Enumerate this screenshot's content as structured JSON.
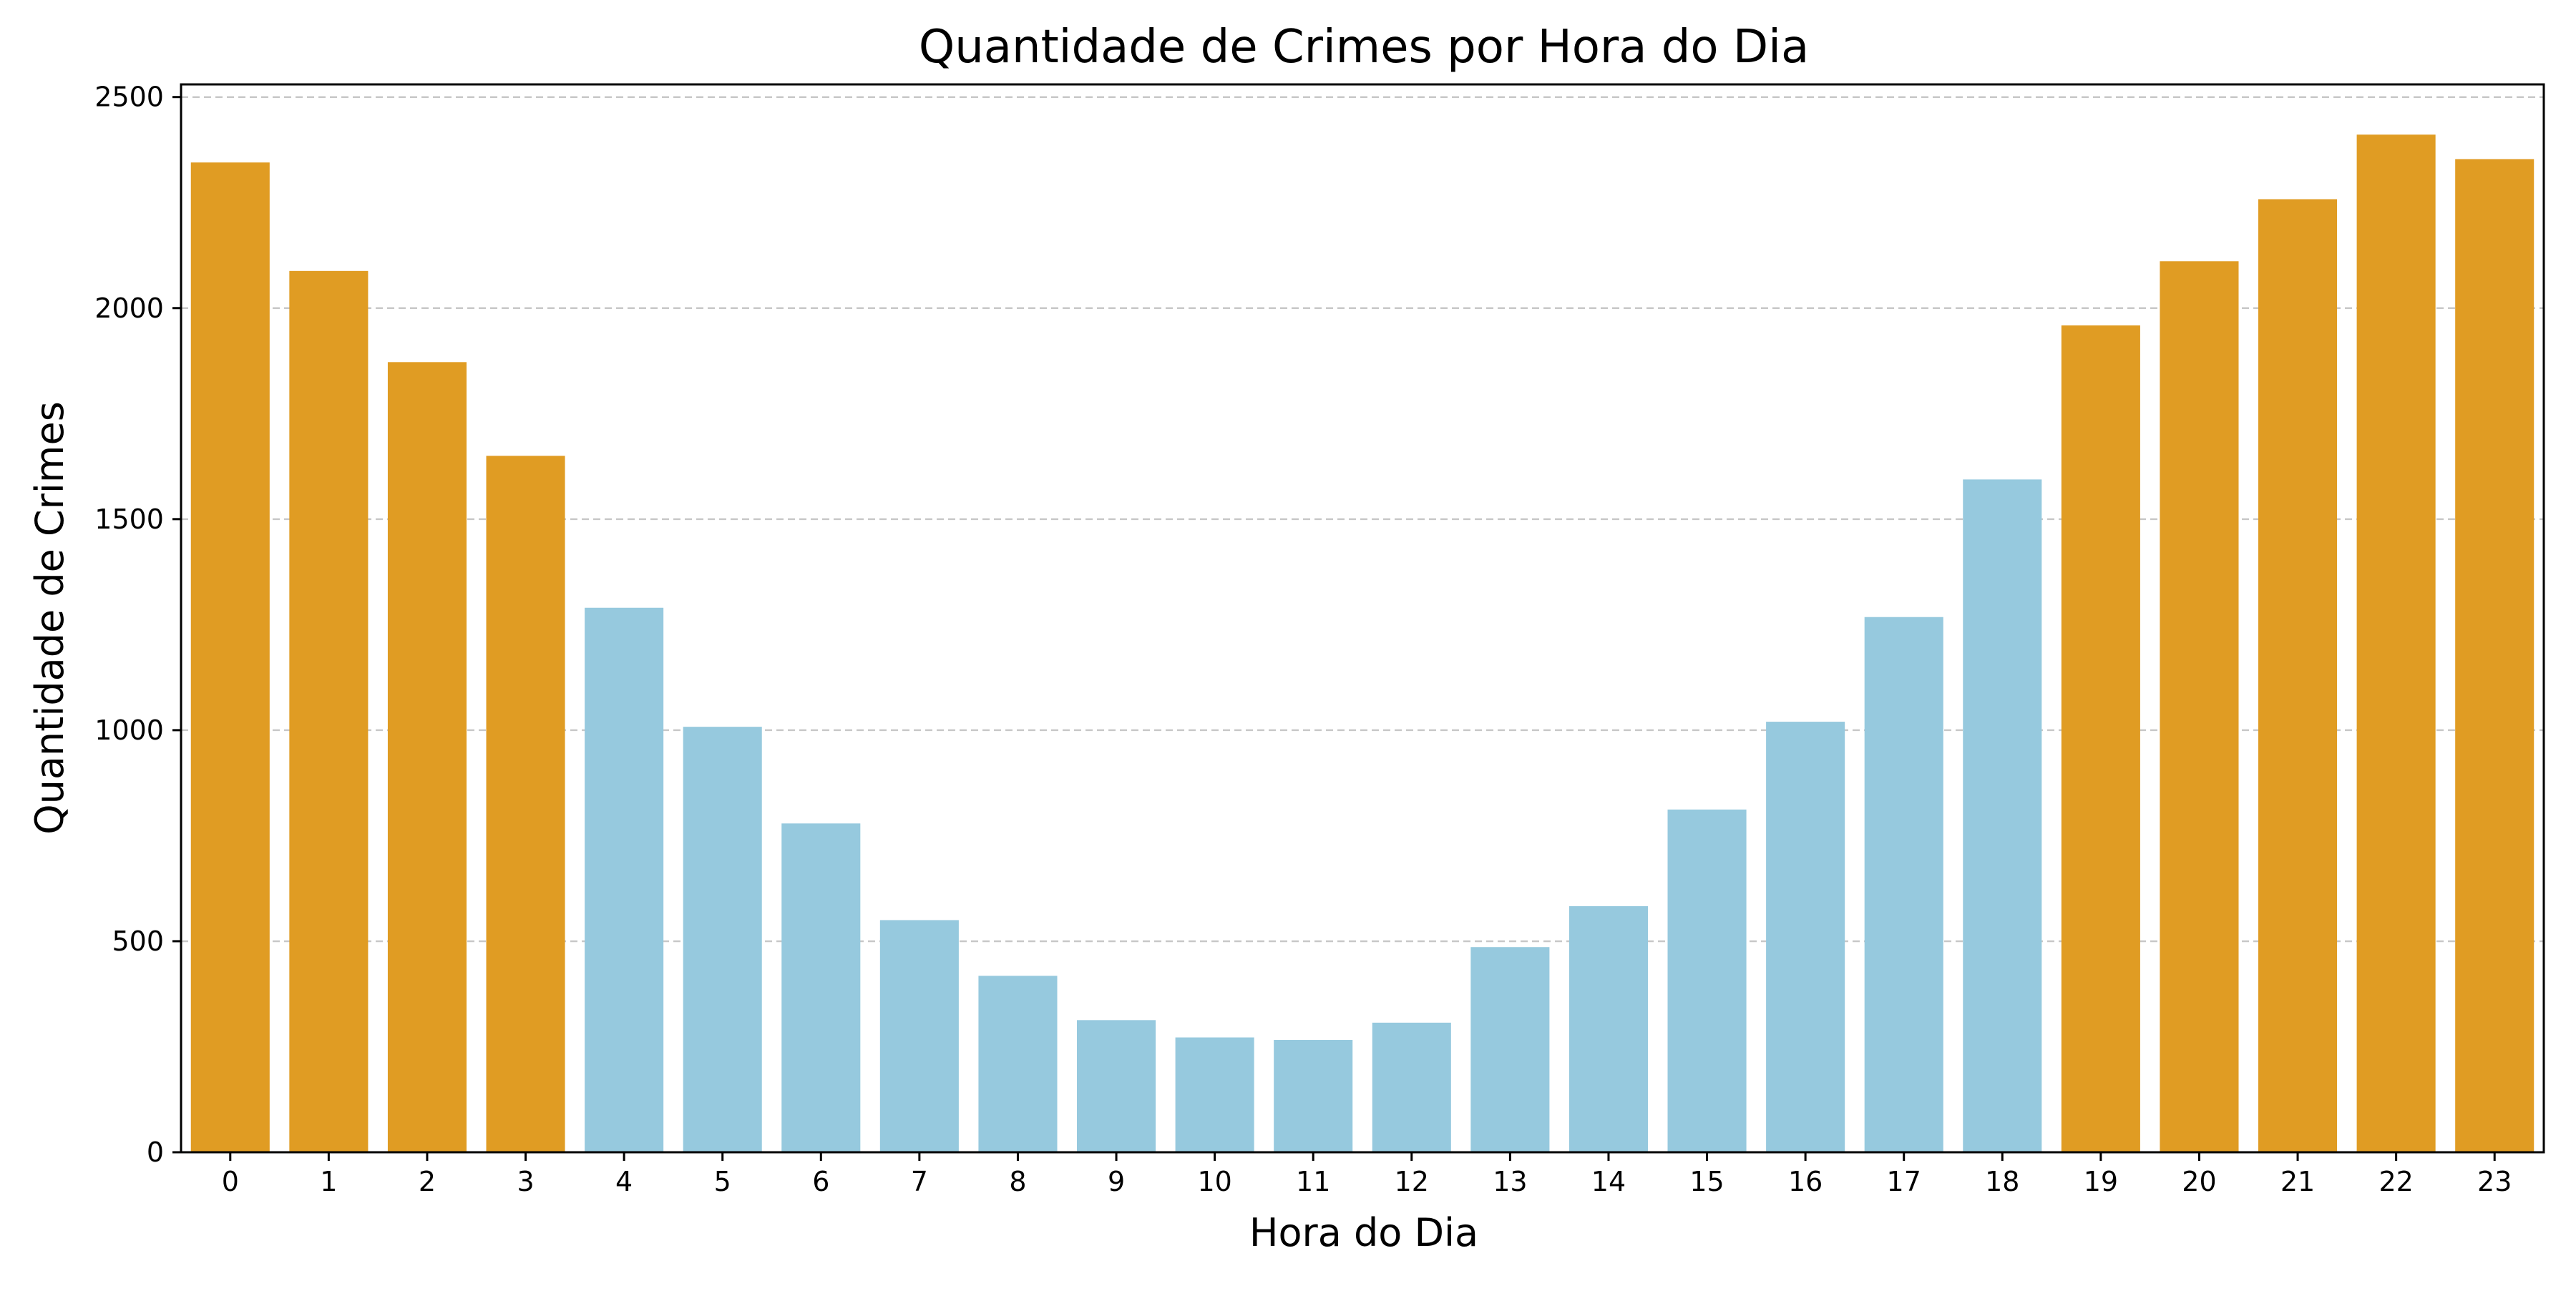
{
  "chart_data": {
    "type": "bar",
    "title": "Quantidade de Crimes por Hora do Dia",
    "xlabel": "Hora do Dia",
    "ylabel": "Quantidade de Crimes",
    "categories": [
      "0",
      "1",
      "2",
      "3",
      "4",
      "5",
      "6",
      "7",
      "8",
      "9",
      "10",
      "11",
      "12",
      "13",
      "14",
      "15",
      "16",
      "17",
      "18",
      "19",
      "20",
      "21",
      "22",
      "23"
    ],
    "values": [
      2345,
      2088,
      1872,
      1650,
      1290,
      1008,
      779,
      550,
      418,
      313,
      272,
      266,
      307,
      486,
      583,
      812,
      1020,
      1268,
      1594,
      1959,
      2111,
      2258,
      2411,
      2353
    ],
    "bar_colors": [
      "#e09c23",
      "#e09c23",
      "#e09c23",
      "#e09c23",
      "#96c9de",
      "#96c9de",
      "#96c9de",
      "#96c9de",
      "#96c9de",
      "#96c9de",
      "#96c9de",
      "#96c9de",
      "#96c9de",
      "#96c9de",
      "#96c9de",
      "#96c9de",
      "#96c9de",
      "#96c9de",
      "#96c9de",
      "#e09c23",
      "#e09c23",
      "#e09c23",
      "#e09c23",
      "#e09c23"
    ],
    "colors": {
      "high": "#e09c23",
      "low": "#96c9de",
      "grid": "#c8c8c8"
    },
    "ylim": [
      0,
      2530
    ],
    "yticks": [
      0,
      500,
      1000,
      1500,
      2000,
      2500
    ],
    "grid": "y-dashed",
    "legend": "none"
  }
}
